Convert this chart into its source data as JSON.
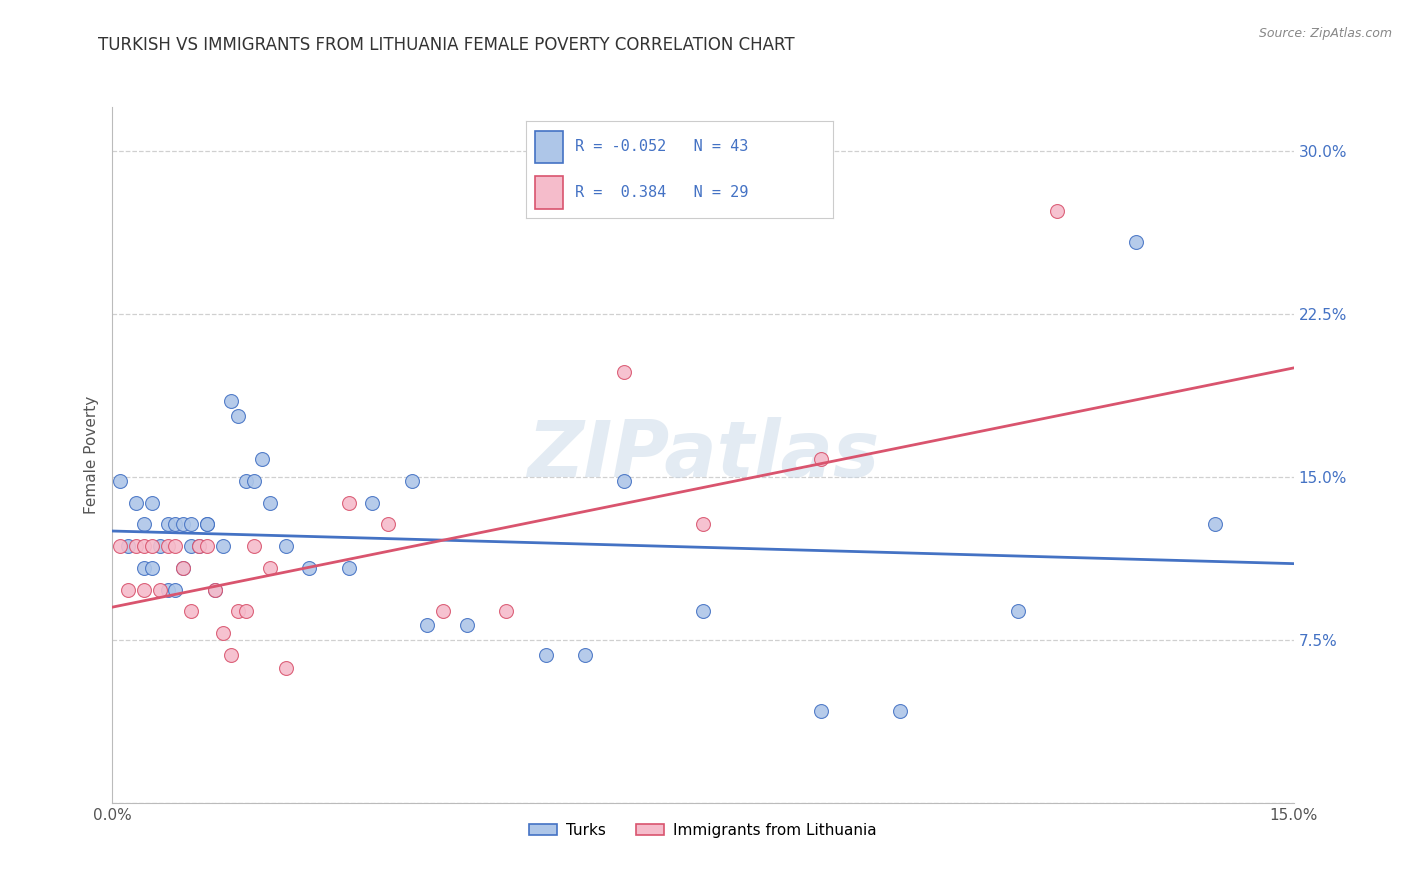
{
  "title": "TURKISH VS IMMIGRANTS FROM LITHUANIA FEMALE POVERTY CORRELATION CHART",
  "source": "Source: ZipAtlas.com",
  "ylabel": "Female Poverty",
  "xlim": [
    0.0,
    0.15
  ],
  "ylim": [
    0.0,
    0.32
  ],
  "ytick_labels_right": [
    "",
    "7.5%",
    "15.0%",
    "22.5%",
    "30.0%"
  ],
  "ytick_positions_right": [
    0.0,
    0.075,
    0.15,
    0.225,
    0.3
  ],
  "turks_R": -0.052,
  "turks_N": 43,
  "lith_R": 0.384,
  "lith_N": 29,
  "turks_color": "#aec6e8",
  "lith_color": "#f5bccb",
  "turks_line_color": "#4472c4",
  "lith_line_color": "#d9546e",
  "legend_label_turks": "Turks",
  "legend_label_lith": "Immigrants from Lithuania",
  "turks_x": [
    0.001,
    0.002,
    0.003,
    0.004,
    0.004,
    0.005,
    0.005,
    0.006,
    0.007,
    0.007,
    0.008,
    0.008,
    0.009,
    0.009,
    0.01,
    0.01,
    0.011,
    0.012,
    0.012,
    0.013,
    0.014,
    0.015,
    0.016,
    0.017,
    0.018,
    0.019,
    0.02,
    0.022,
    0.025,
    0.03,
    0.033,
    0.038,
    0.04,
    0.045,
    0.055,
    0.06,
    0.065,
    0.075,
    0.09,
    0.1,
    0.115,
    0.13,
    0.14
  ],
  "turks_y": [
    0.148,
    0.118,
    0.138,
    0.128,
    0.108,
    0.138,
    0.108,
    0.118,
    0.128,
    0.098,
    0.128,
    0.098,
    0.128,
    0.108,
    0.128,
    0.118,
    0.118,
    0.128,
    0.128,
    0.098,
    0.118,
    0.185,
    0.178,
    0.148,
    0.148,
    0.158,
    0.138,
    0.118,
    0.108,
    0.108,
    0.138,
    0.148,
    0.082,
    0.082,
    0.068,
    0.068,
    0.148,
    0.088,
    0.042,
    0.042,
    0.088,
    0.258,
    0.128
  ],
  "lith_x": [
    0.001,
    0.002,
    0.003,
    0.004,
    0.004,
    0.005,
    0.006,
    0.007,
    0.008,
    0.009,
    0.01,
    0.011,
    0.012,
    0.013,
    0.014,
    0.015,
    0.016,
    0.017,
    0.018,
    0.02,
    0.022,
    0.03,
    0.035,
    0.042,
    0.05,
    0.065,
    0.075,
    0.09,
    0.12
  ],
  "lith_y": [
    0.118,
    0.098,
    0.118,
    0.118,
    0.098,
    0.118,
    0.098,
    0.118,
    0.118,
    0.108,
    0.088,
    0.118,
    0.118,
    0.098,
    0.078,
    0.068,
    0.088,
    0.088,
    0.118,
    0.108,
    0.062,
    0.138,
    0.128,
    0.088,
    0.088,
    0.198,
    0.128,
    0.158,
    0.272
  ],
  "title_fontsize": 12,
  "axis_label_fontsize": 11,
  "tick_fontsize": 11,
  "background_color": "#ffffff",
  "grid_color": "#d0d0d0",
  "watermark": "ZIPatlas",
  "scatter_size": 100
}
